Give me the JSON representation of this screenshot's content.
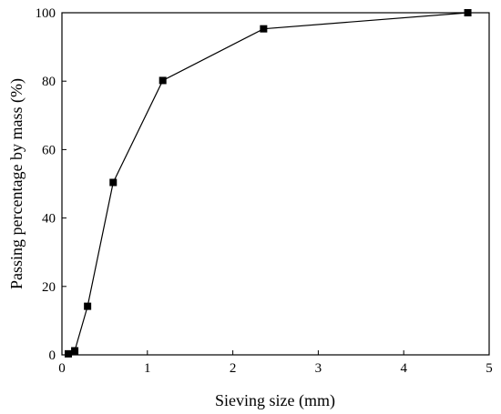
{
  "chart_data": {
    "type": "line",
    "title": "",
    "xlabel": "Sieving size (mm)",
    "ylabel": "Passing percentage by mass (%)",
    "xlim": [
      0,
      5
    ],
    "ylim": [
      0,
      100
    ],
    "x_ticks": [
      0,
      1,
      2,
      3,
      4,
      5
    ],
    "y_ticks": [
      0,
      20,
      40,
      60,
      80,
      100
    ],
    "grid": false,
    "series": [
      {
        "x": [
          0.075,
          0.15,
          0.3,
          0.6,
          1.18,
          2.36,
          4.75
        ],
        "values": [
          0.3,
          1.2,
          14.2,
          50.4,
          80.2,
          95.3,
          100
        ],
        "marker": "square",
        "color": "#000000"
      }
    ]
  }
}
